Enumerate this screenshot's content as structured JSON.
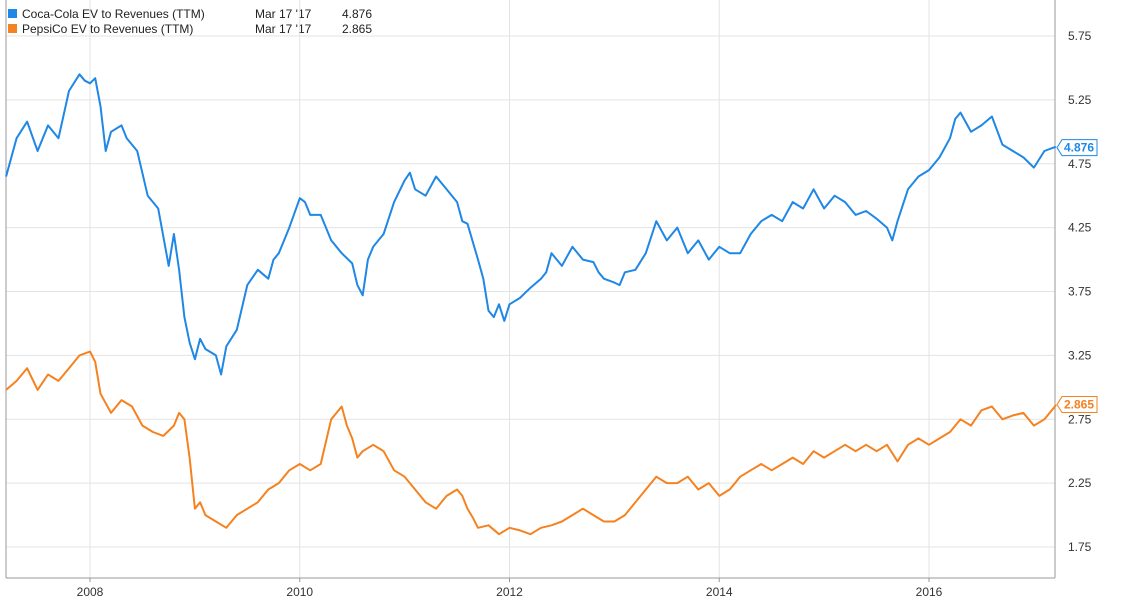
{
  "chart_data": {
    "type": "line",
    "y_ticks": [
      "5.75",
      "5.25",
      "4.75",
      "4.25",
      "3.75",
      "3.25",
      "2.75",
      "2.25",
      "1.75"
    ],
    "x_ticks": [
      "2008",
      "2010",
      "2012",
      "2014",
      "2016"
    ],
    "grid": true,
    "legend_position": "top-left",
    "series": [
      {
        "name": "Coca-Cola EV to Revenues (TTM)",
        "date": "Mar 17 '17",
        "last_value": "4.876",
        "color": "#1f87e5",
        "points": [
          [
            2007.2,
            4.65
          ],
          [
            2007.3,
            4.95
          ],
          [
            2007.4,
            5.08
          ],
          [
            2007.5,
            4.85
          ],
          [
            2007.6,
            5.05
          ],
          [
            2007.7,
            4.95
          ],
          [
            2007.8,
            5.32
          ],
          [
            2007.9,
            5.45
          ],
          [
            2007.95,
            5.4
          ],
          [
            2008.0,
            5.38
          ],
          [
            2008.05,
            5.42
          ],
          [
            2008.1,
            5.2
          ],
          [
            2008.15,
            4.85
          ],
          [
            2008.2,
            5.0
          ],
          [
            2008.3,
            5.05
          ],
          [
            2008.35,
            4.95
          ],
          [
            2008.45,
            4.85
          ],
          [
            2008.55,
            4.5
          ],
          [
            2008.65,
            4.4
          ],
          [
            2008.75,
            3.95
          ],
          [
            2008.8,
            4.2
          ],
          [
            2008.85,
            3.92
          ],
          [
            2008.9,
            3.55
          ],
          [
            2008.95,
            3.35
          ],
          [
            2009.0,
            3.22
          ],
          [
            2009.05,
            3.38
          ],
          [
            2009.1,
            3.3
          ],
          [
            2009.2,
            3.25
          ],
          [
            2009.25,
            3.1
          ],
          [
            2009.3,
            3.32
          ],
          [
            2009.4,
            3.45
          ],
          [
            2009.5,
            3.8
          ],
          [
            2009.6,
            3.92
          ],
          [
            2009.7,
            3.85
          ],
          [
            2009.75,
            4.0
          ],
          [
            2009.8,
            4.05
          ],
          [
            2009.9,
            4.25
          ],
          [
            2010.0,
            4.48
          ],
          [
            2010.05,
            4.45
          ],
          [
            2010.1,
            4.35
          ],
          [
            2010.2,
            4.35
          ],
          [
            2010.3,
            4.15
          ],
          [
            2010.35,
            4.1
          ],
          [
            2010.4,
            4.05
          ],
          [
            2010.5,
            3.97
          ],
          [
            2010.55,
            3.8
          ],
          [
            2010.6,
            3.72
          ],
          [
            2010.65,
            4.0
          ],
          [
            2010.7,
            4.1
          ],
          [
            2010.8,
            4.2
          ],
          [
            2010.9,
            4.45
          ],
          [
            2011.0,
            4.62
          ],
          [
            2011.05,
            4.68
          ],
          [
            2011.1,
            4.55
          ],
          [
            2011.2,
            4.5
          ],
          [
            2011.3,
            4.65
          ],
          [
            2011.4,
            4.55
          ],
          [
            2011.5,
            4.45
          ],
          [
            2011.55,
            4.3
          ],
          [
            2011.6,
            4.28
          ],
          [
            2011.7,
            4.0
          ],
          [
            2011.75,
            3.85
          ],
          [
            2011.8,
            3.6
          ],
          [
            2011.85,
            3.55
          ],
          [
            2011.9,
            3.65
          ],
          [
            2011.95,
            3.52
          ],
          [
            2012.0,
            3.65
          ],
          [
            2012.1,
            3.7
          ],
          [
            2012.2,
            3.78
          ],
          [
            2012.3,
            3.85
          ],
          [
            2012.35,
            3.9
          ],
          [
            2012.4,
            4.05
          ],
          [
            2012.5,
            3.95
          ],
          [
            2012.6,
            4.1
          ],
          [
            2012.7,
            4.0
          ],
          [
            2012.8,
            3.98
          ],
          [
            2012.85,
            3.9
          ],
          [
            2012.9,
            3.85
          ],
          [
            2013.0,
            3.82
          ],
          [
            2013.05,
            3.8
          ],
          [
            2013.1,
            3.9
          ],
          [
            2013.2,
            3.92
          ],
          [
            2013.3,
            4.05
          ],
          [
            2013.4,
            4.3
          ],
          [
            2013.5,
            4.15
          ],
          [
            2013.6,
            4.25
          ],
          [
            2013.7,
            4.05
          ],
          [
            2013.8,
            4.15
          ],
          [
            2013.9,
            4.0
          ],
          [
            2014.0,
            4.1
          ],
          [
            2014.1,
            4.05
          ],
          [
            2014.2,
            4.05
          ],
          [
            2014.3,
            4.2
          ],
          [
            2014.4,
            4.3
          ],
          [
            2014.5,
            4.35
          ],
          [
            2014.6,
            4.3
          ],
          [
            2014.7,
            4.45
          ],
          [
            2014.8,
            4.4
          ],
          [
            2014.9,
            4.55
          ],
          [
            2015.0,
            4.4
          ],
          [
            2015.1,
            4.5
          ],
          [
            2015.2,
            4.45
          ],
          [
            2015.3,
            4.35
          ],
          [
            2015.4,
            4.38
          ],
          [
            2015.5,
            4.32
          ],
          [
            2015.6,
            4.25
          ],
          [
            2015.65,
            4.15
          ],
          [
            2015.7,
            4.3
          ],
          [
            2015.8,
            4.55
          ],
          [
            2015.9,
            4.65
          ],
          [
            2016.0,
            4.7
          ],
          [
            2016.1,
            4.8
          ],
          [
            2016.2,
            4.95
          ],
          [
            2016.25,
            5.1
          ],
          [
            2016.3,
            5.15
          ],
          [
            2016.4,
            5.0
          ],
          [
            2016.5,
            5.05
          ],
          [
            2016.6,
            5.12
          ],
          [
            2016.7,
            4.9
          ],
          [
            2016.8,
            4.85
          ],
          [
            2016.9,
            4.8
          ],
          [
            2017.0,
            4.72
          ],
          [
            2017.1,
            4.85
          ],
          [
            2017.2,
            4.88
          ],
          [
            2017.21,
            4.876
          ]
        ]
      },
      {
        "name": "PepsiCo EV to Revenues (TTM)",
        "date": "Mar 17 '17",
        "last_value": "2.865",
        "color": "#f58220",
        "points": [
          [
            2007.2,
            2.98
          ],
          [
            2007.3,
            3.05
          ],
          [
            2007.4,
            3.15
          ],
          [
            2007.5,
            2.98
          ],
          [
            2007.6,
            3.1
          ],
          [
            2007.7,
            3.05
          ],
          [
            2007.8,
            3.15
          ],
          [
            2007.9,
            3.25
          ],
          [
            2008.0,
            3.28
          ],
          [
            2008.05,
            3.2
          ],
          [
            2008.1,
            2.95
          ],
          [
            2008.2,
            2.8
          ],
          [
            2008.3,
            2.9
          ],
          [
            2008.4,
            2.85
          ],
          [
            2008.5,
            2.7
          ],
          [
            2008.6,
            2.65
          ],
          [
            2008.7,
            2.62
          ],
          [
            2008.8,
            2.7
          ],
          [
            2008.85,
            2.8
          ],
          [
            2008.9,
            2.75
          ],
          [
            2008.95,
            2.45
          ],
          [
            2009.0,
            2.05
          ],
          [
            2009.05,
            2.1
          ],
          [
            2009.1,
            2.0
          ],
          [
            2009.2,
            1.95
          ],
          [
            2009.3,
            1.9
          ],
          [
            2009.4,
            2.0
          ],
          [
            2009.5,
            2.05
          ],
          [
            2009.6,
            2.1
          ],
          [
            2009.7,
            2.2
          ],
          [
            2009.8,
            2.25
          ],
          [
            2009.9,
            2.35
          ],
          [
            2010.0,
            2.4
          ],
          [
            2010.1,
            2.35
          ],
          [
            2010.2,
            2.4
          ],
          [
            2010.3,
            2.75
          ],
          [
            2010.35,
            2.8
          ],
          [
            2010.4,
            2.85
          ],
          [
            2010.45,
            2.7
          ],
          [
            2010.5,
            2.6
          ],
          [
            2010.55,
            2.45
          ],
          [
            2010.6,
            2.5
          ],
          [
            2010.7,
            2.55
          ],
          [
            2010.8,
            2.5
          ],
          [
            2010.9,
            2.35
          ],
          [
            2011.0,
            2.3
          ],
          [
            2011.1,
            2.2
          ],
          [
            2011.2,
            2.1
          ],
          [
            2011.3,
            2.05
          ],
          [
            2011.4,
            2.15
          ],
          [
            2011.5,
            2.2
          ],
          [
            2011.55,
            2.15
          ],
          [
            2011.6,
            2.05
          ],
          [
            2011.65,
            1.98
          ],
          [
            2011.7,
            1.9
          ],
          [
            2011.8,
            1.92
          ],
          [
            2011.9,
            1.85
          ],
          [
            2012.0,
            1.9
          ],
          [
            2012.1,
            1.88
          ],
          [
            2012.2,
            1.85
          ],
          [
            2012.3,
            1.9
          ],
          [
            2012.4,
            1.92
          ],
          [
            2012.5,
            1.95
          ],
          [
            2012.6,
            2.0
          ],
          [
            2012.7,
            2.05
          ],
          [
            2012.8,
            2.0
          ],
          [
            2012.9,
            1.95
          ],
          [
            2013.0,
            1.95
          ],
          [
            2013.1,
            2.0
          ],
          [
            2013.2,
            2.1
          ],
          [
            2013.3,
            2.2
          ],
          [
            2013.4,
            2.3
          ],
          [
            2013.5,
            2.25
          ],
          [
            2013.6,
            2.25
          ],
          [
            2013.7,
            2.3
          ],
          [
            2013.8,
            2.2
          ],
          [
            2013.9,
            2.25
          ],
          [
            2014.0,
            2.15
          ],
          [
            2014.1,
            2.2
          ],
          [
            2014.2,
            2.3
          ],
          [
            2014.3,
            2.35
          ],
          [
            2014.4,
            2.4
          ],
          [
            2014.5,
            2.35
          ],
          [
            2014.6,
            2.4
          ],
          [
            2014.7,
            2.45
          ],
          [
            2014.8,
            2.4
          ],
          [
            2014.9,
            2.5
          ],
          [
            2015.0,
            2.45
          ],
          [
            2015.1,
            2.5
          ],
          [
            2015.2,
            2.55
          ],
          [
            2015.3,
            2.5
          ],
          [
            2015.4,
            2.55
          ],
          [
            2015.5,
            2.5
          ],
          [
            2015.6,
            2.55
          ],
          [
            2015.7,
            2.42
          ],
          [
            2015.8,
            2.55
          ],
          [
            2015.9,
            2.6
          ],
          [
            2016.0,
            2.55
          ],
          [
            2016.1,
            2.6
          ],
          [
            2016.2,
            2.65
          ],
          [
            2016.3,
            2.75
          ],
          [
            2016.4,
            2.7
          ],
          [
            2016.5,
            2.82
          ],
          [
            2016.6,
            2.85
          ],
          [
            2016.7,
            2.75
          ],
          [
            2016.8,
            2.78
          ],
          [
            2016.9,
            2.8
          ],
          [
            2017.0,
            2.7
          ],
          [
            2017.1,
            2.75
          ],
          [
            2017.2,
            2.85
          ],
          [
            2017.21,
            2.865
          ]
        ]
      }
    ]
  }
}
